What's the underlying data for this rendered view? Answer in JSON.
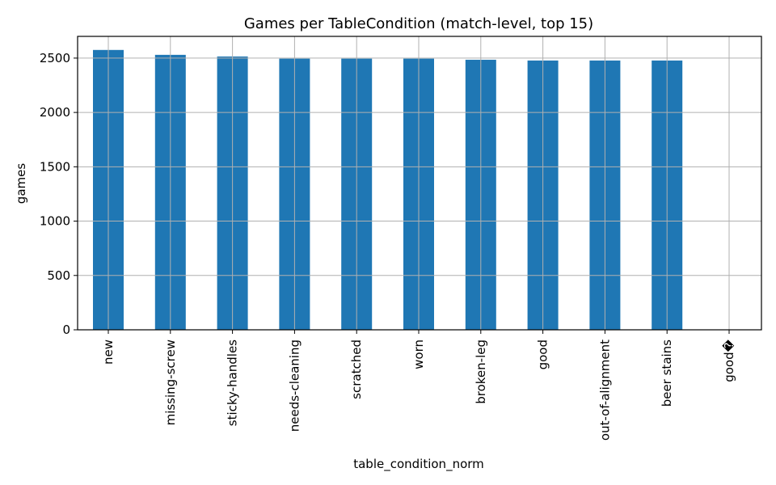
{
  "chart_data": {
    "type": "bar",
    "title": "Games per TableCondition (match-level, top 15)",
    "xlabel": "table_condition_norm",
    "ylabel": "games",
    "categories": [
      "new",
      "missing-screw",
      "sticky-handles",
      "needs-cleaning",
      "scratched",
      "worn",
      "broken-leg",
      "good",
      "out-of-alignment",
      "beer stains",
      "good�"
    ],
    "values": [
      2575,
      2530,
      2515,
      2495,
      2495,
      2495,
      2485,
      2478,
      2478,
      2478,
      0
    ],
    "ylim": [
      0,
      2700
    ],
    "yticks": [
      0,
      500,
      1000,
      1500,
      2000,
      2500
    ],
    "grid": true,
    "bar_color": "#1f77b4",
    "grid_color": "#b0b0b0",
    "legend": "none"
  }
}
